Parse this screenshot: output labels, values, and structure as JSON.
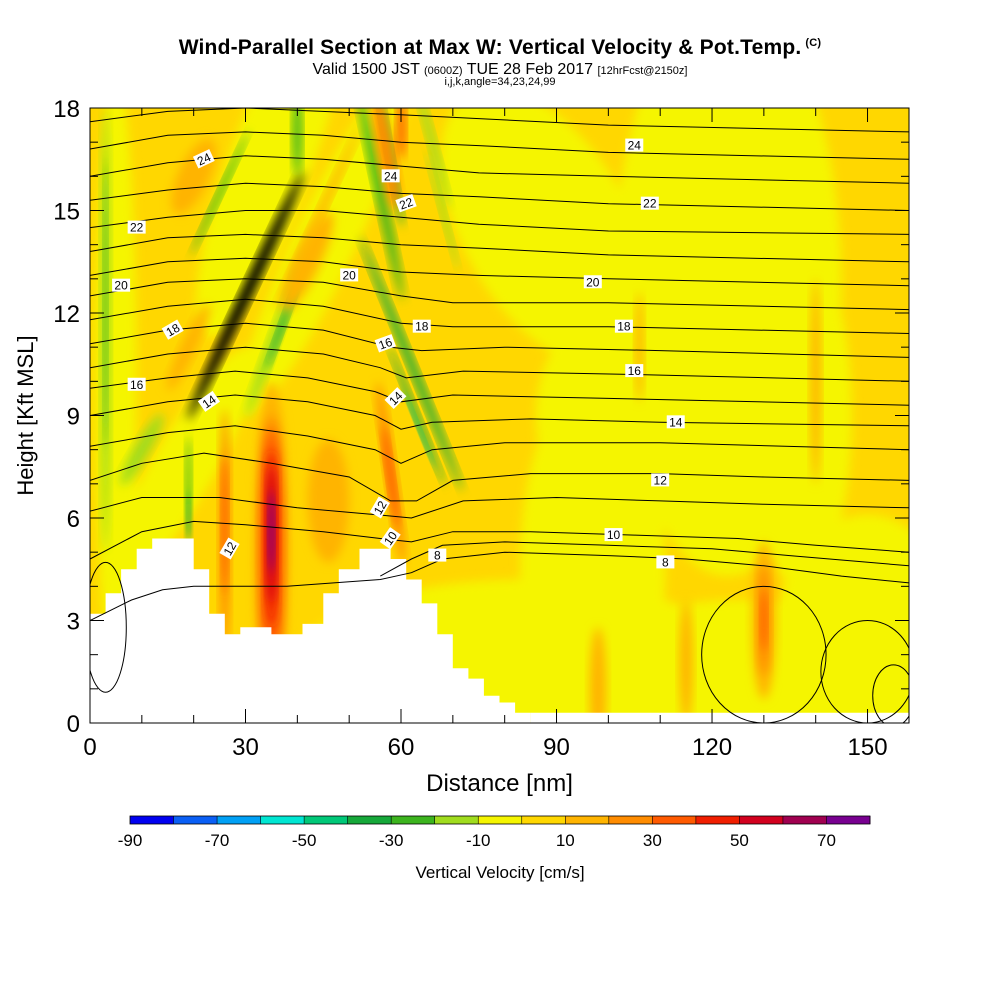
{
  "chart_data": {
    "type": "heatmap",
    "title": "Wind-Parallel Section at Max W: Vertical Velocity & Pot.Temp.",
    "copyright_mark": "(C)",
    "subtitle_main": "Valid 1500 JST",
    "subtitle_utc": "(0600Z)",
    "subtitle_date": "TUE 28 Feb 2017",
    "subtitle_fcst": "[12hrFcst@2150z]",
    "params": "i,j,k,angle=34,23,24,99",
    "xlabel": "Distance [nm]",
    "ylabel": "Height [Kft MSL]",
    "xlim": [
      0,
      158
    ],
    "ylim": [
      0,
      18
    ],
    "x_ticks": [
      0,
      30,
      60,
      90,
      120,
      150
    ],
    "y_ticks": [
      0,
      3,
      6,
      9,
      12,
      15,
      18
    ],
    "colorbar": {
      "label": "Vertical Velocity [cm/s]",
      "tick_labels": [
        -90,
        -70,
        -50,
        -30,
        -10,
        10,
        30,
        50,
        70
      ],
      "colors": [
        "#0000f0",
        "#0a5ff5",
        "#00a0f5",
        "#00e6d2",
        "#00c878",
        "#16a83a",
        "#3cb41e",
        "#a0dc1e",
        "#f5f500",
        "#ffd700",
        "#ffb400",
        "#ff8c00",
        "#ff5a00",
        "#f01e00",
        "#d2001e",
        "#a00050",
        "#780090"
      ]
    },
    "contour_field": "Potential temperature (C)",
    "contour_labels": [
      8,
      10,
      12,
      14,
      16,
      18,
      20,
      22,
      24
    ]
  }
}
